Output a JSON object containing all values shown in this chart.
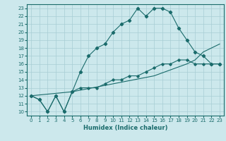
{
  "xlabel": "Humidex (Indice chaleur)",
  "background_color": "#cce8ec",
  "grid_color": "#a8cdd4",
  "line_color": "#1a6b6b",
  "xlim": [
    -0.5,
    23.5
  ],
  "ylim": [
    9.5,
    23.5
  ],
  "xticks": [
    0,
    1,
    2,
    3,
    4,
    5,
    6,
    7,
    8,
    9,
    10,
    11,
    12,
    13,
    14,
    15,
    16,
    17,
    18,
    19,
    20,
    21,
    22,
    23
  ],
  "yticks": [
    10,
    11,
    12,
    13,
    14,
    15,
    16,
    17,
    18,
    19,
    20,
    21,
    22,
    23
  ],
  "line1_x": [
    0,
    1,
    2,
    3,
    4,
    5,
    6,
    7,
    8,
    9,
    10,
    11,
    12,
    13,
    14,
    15,
    16,
    17,
    18,
    19,
    20,
    21,
    22,
    23
  ],
  "line1_y": [
    12,
    11.5,
    10,
    12,
    10,
    12.5,
    15,
    17,
    18,
    18.5,
    20,
    21,
    21.5,
    23,
    22,
    23,
    23,
    22.5,
    20.5,
    19,
    17.5,
    17,
    16,
    16
  ],
  "line2_x": [
    0,
    1,
    2,
    3,
    4,
    5,
    6,
    7,
    8,
    9,
    10,
    11,
    12,
    13,
    14,
    15,
    16,
    17,
    18,
    19,
    20,
    21,
    22,
    23
  ],
  "line2_y": [
    12,
    11.5,
    10,
    12,
    10,
    12.5,
    13,
    13,
    13,
    13.5,
    14,
    14,
    14.5,
    14.5,
    15,
    15.5,
    16,
    16,
    16.5,
    16.5,
    16,
    16,
    16,
    16
  ],
  "line3_x": [
    0,
    5,
    10,
    15,
    19,
    20,
    21,
    22,
    23
  ],
  "line3_y": [
    12,
    12.5,
    13.5,
    14.5,
    16,
    16.5,
    17.5,
    18,
    18.5
  ]
}
